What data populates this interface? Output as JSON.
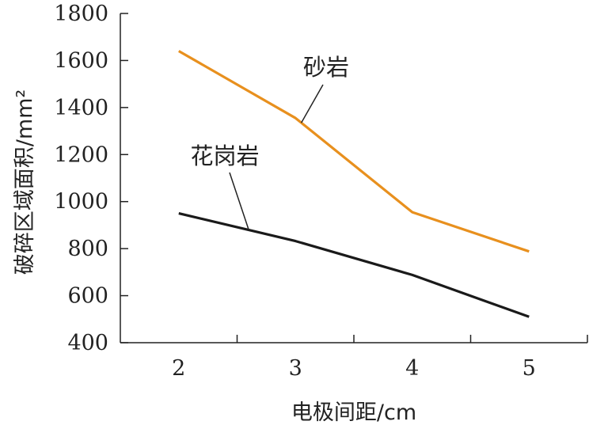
{
  "chart_data": {
    "type": "line",
    "title": "",
    "xlabel": "电极间距/cm",
    "ylabel": "破碎区域面积/mm²",
    "x": [
      2,
      3,
      4,
      5
    ],
    "x_ticks": [
      "2",
      "3",
      "4",
      "5"
    ],
    "xlim": [
      1.5,
      5.5
    ],
    "ylim": [
      400,
      1800
    ],
    "y_ticks": [
      400,
      600,
      800,
      1000,
      1200,
      1400,
      1600,
      1800
    ],
    "grid": false,
    "legend": "inline-callout-labels",
    "series": [
      {
        "name": "砂岩",
        "color": "#e8901e",
        "values": [
          1640,
          1355,
          955,
          788
        ]
      },
      {
        "name": "花岗岩",
        "color": "#1a1a1a",
        "values": [
          950,
          832,
          688,
          510
        ]
      }
    ]
  }
}
